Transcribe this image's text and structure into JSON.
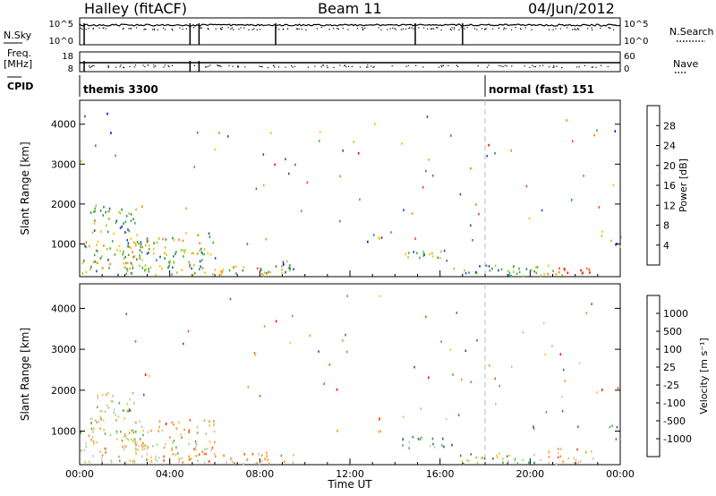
{
  "header": {
    "station": "Halley (fitACF)",
    "beam": "Beam 11",
    "date": "04/Jun/2012"
  },
  "top_panel": {
    "nsky_label": "N.Sky",
    "nsearch_label": "N.Search",
    "freq_label": "Freq.",
    "freq_unit": "[MHz]",
    "nave_label": "Nave",
    "cpid_label": "CPID",
    "noise_ticks_left": [
      "10^5",
      "10^0"
    ],
    "noise_ticks_right": [
      "10^5",
      "10^0"
    ],
    "freq_ticks_left": [
      "18",
      "8"
    ],
    "freq_ticks_right": [
      "60",
      "0"
    ],
    "cpid_segments": [
      {
        "label": "themis 3300",
        "start_hour": 0,
        "end_hour": 18
      },
      {
        "label": "normal (fast) 151",
        "start_hour": 18,
        "end_hour": 24
      }
    ],
    "noise_spike_hours": [
      0.2,
      4.9,
      5.3,
      8.7,
      14.9,
      17.0
    ],
    "freq_spike_hours": [
      0.2,
      4.9,
      5.3
    ]
  },
  "chart_data": [
    {
      "type": "heatmap",
      "name": "power",
      "ylabel": "Slant Range [km]",
      "xlabel": "",
      "ylim": [
        180,
        4600
      ],
      "xlim": [
        0,
        24
      ],
      "y_ticks": [
        "1000",
        "2000",
        "3000",
        "4000"
      ],
      "colorbar": {
        "label": "Power [dB]",
        "ticks": [
          "4",
          "8",
          "12",
          "16",
          "20",
          "24",
          "28"
        ],
        "range": [
          0,
          32
        ],
        "colors": [
          "#0000ff",
          "#2050c0",
          "#2d8a70",
          "#40b040",
          "#9ad020",
          "#ffc000",
          "#ff8000",
          "#ff4000",
          "#ff0000"
        ]
      },
      "clusters": [
        {
          "t": [
            0.0,
            3.0
          ],
          "r": [
            250,
            1100
          ],
          "level": 0.45
        },
        {
          "t": [
            0.4,
            2.5
          ],
          "r": [
            1200,
            2000
          ],
          "level": 0.4
        },
        {
          "t": [
            2.0,
            6.0
          ],
          "r": [
            250,
            1300
          ],
          "level": 0.45
        },
        {
          "t": [
            5.0,
            9.5
          ],
          "r": [
            220,
            500
          ],
          "level": 0.55
        },
        {
          "t": [
            9.0,
            9.8
          ],
          "r": [
            300,
            600
          ],
          "level": 0.2
        },
        {
          "t": [
            13.0,
            13.4
          ],
          "r": [
            1000,
            1400
          ],
          "level": 0.35
        },
        {
          "t": [
            14.2,
            15.5
          ],
          "r": [
            600,
            900
          ],
          "level": 0.4
        },
        {
          "t": [
            15.5,
            16.5
          ],
          "r": [
            600,
            900
          ],
          "level": 0.35
        },
        {
          "t": [
            16.5,
            20.5
          ],
          "r": [
            220,
            500
          ],
          "level": 0.35
        },
        {
          "t": [
            20.5,
            22.8
          ],
          "r": [
            220,
            500
          ],
          "level": 0.8
        },
        {
          "t": [
            19.8,
            21.0
          ],
          "r": [
            300,
            500
          ],
          "level": 0.3
        },
        {
          "t": [
            23.5,
            24.0
          ],
          "r": [
            800,
            1200
          ],
          "level": 0.3
        }
      ]
    },
    {
      "type": "heatmap",
      "name": "velocity",
      "ylabel": "Slant Range [km]",
      "xlabel": "Time UT",
      "ylim": [
        180,
        4600
      ],
      "xlim": [
        0,
        24
      ],
      "y_ticks": [
        "1000",
        "2000",
        "3000",
        "4000"
      ],
      "x_ticks": [
        "00:00",
        "04:00",
        "08:00",
        "12:00",
        "16:00",
        "20:00",
        "00:00"
      ],
      "colorbar": {
        "label": "Velocity [m s⁻¹]",
        "ticks": [
          "1000",
          "500",
          "100",
          "25",
          "-25",
          "-100",
          "-500",
          "-1000"
        ],
        "colors": [
          "#3050b0",
          "#2e8b57",
          "#55b050",
          "#a8d878",
          "#c8c8c8",
          "#ffc040",
          "#ff9020",
          "#ff5010",
          "#ff0000"
        ]
      },
      "clusters": [
        {
          "t": [
            0.0,
            3.0
          ],
          "r": [
            250,
            1100
          ],
          "level": 0.5
        },
        {
          "t": [
            0.4,
            2.5
          ],
          "r": [
            1200,
            2000
          ],
          "level": 0.5
        },
        {
          "t": [
            2.0,
            6.0
          ],
          "r": [
            250,
            1300
          ],
          "level": 0.55
        },
        {
          "t": [
            5.0,
            9.5
          ],
          "r": [
            220,
            500
          ],
          "level": 0.6
        },
        {
          "t": [
            13.0,
            13.4
          ],
          "r": [
            1000,
            1400
          ],
          "level": 0.7
        },
        {
          "t": [
            14.2,
            16.5
          ],
          "r": [
            600,
            900
          ],
          "level": 0.3
        },
        {
          "t": [
            16.5,
            20.5
          ],
          "r": [
            220,
            500
          ],
          "level": 0.4
        },
        {
          "t": [
            20.5,
            22.8
          ],
          "r": [
            220,
            600
          ],
          "level": 0.65
        },
        {
          "t": [
            23.5,
            24.0
          ],
          "r": [
            800,
            1200
          ],
          "level": 0.3
        }
      ]
    }
  ]
}
